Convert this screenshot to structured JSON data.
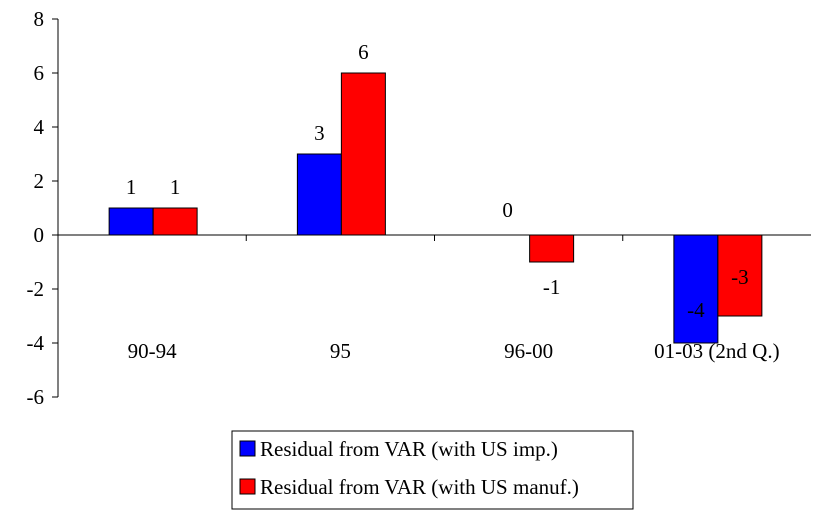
{
  "chart_data": {
    "type": "bar",
    "categories": [
      "90-94",
      "95",
      "96-00",
      "01-03 (2nd Q.)"
    ],
    "series": [
      {
        "name": "Residual from VAR (with US imp.)",
        "values": [
          1,
          3,
          0,
          -4
        ],
        "labels": [
          "1",
          "3",
          "0",
          "-4"
        ],
        "color": "#0000ff"
      },
      {
        "name": "Residual from VAR (with US manuf.)",
        "values": [
          1,
          6,
          -1,
          -3
        ],
        "labels": [
          "1",
          "6",
          "-1",
          "-3"
        ],
        "color": "#ff0000"
      }
    ],
    "ylim": [
      -6,
      8
    ],
    "yticks": [
      8,
      6,
      4,
      2,
      0,
      -2,
      -4,
      -6
    ],
    "title": "",
    "xlabel": "",
    "ylabel": "",
    "grid": false,
    "legend": "bottom"
  }
}
